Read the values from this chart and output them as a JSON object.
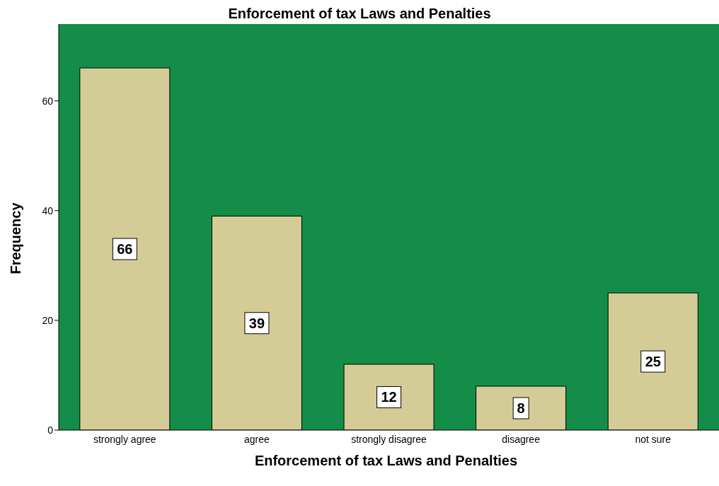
{
  "chart_data": {
    "type": "bar",
    "title": "Enforcement of tax Laws and Penalties",
    "xlabel": "Enforcement of tax Laws and Penalties",
    "ylabel": "Frequency",
    "categories": [
      "strongly agree",
      "agree",
      "strongly disagree",
      "disagree",
      "not sure"
    ],
    "values": [
      66,
      39,
      12,
      8,
      25
    ],
    "color": "#d3cc96",
    "ylim": [
      0,
      74
    ],
    "yticks": [
      0,
      20,
      40,
      60
    ],
    "grid": false,
    "data_labels": true
  }
}
